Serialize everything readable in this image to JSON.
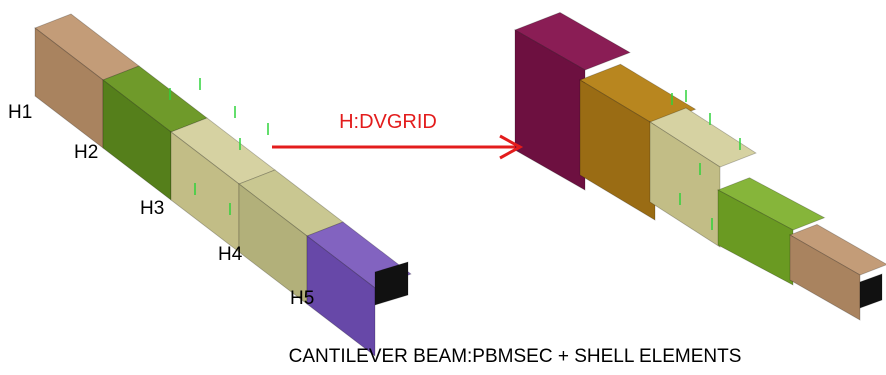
{
  "labels": [
    "H1",
    "H2",
    "H3",
    "H4",
    "H5"
  ],
  "arrow_label": "H:DVGRID",
  "caption": "CANTILEVER BEAM:PBMSEC + SHELL ELEMENTS"
}
